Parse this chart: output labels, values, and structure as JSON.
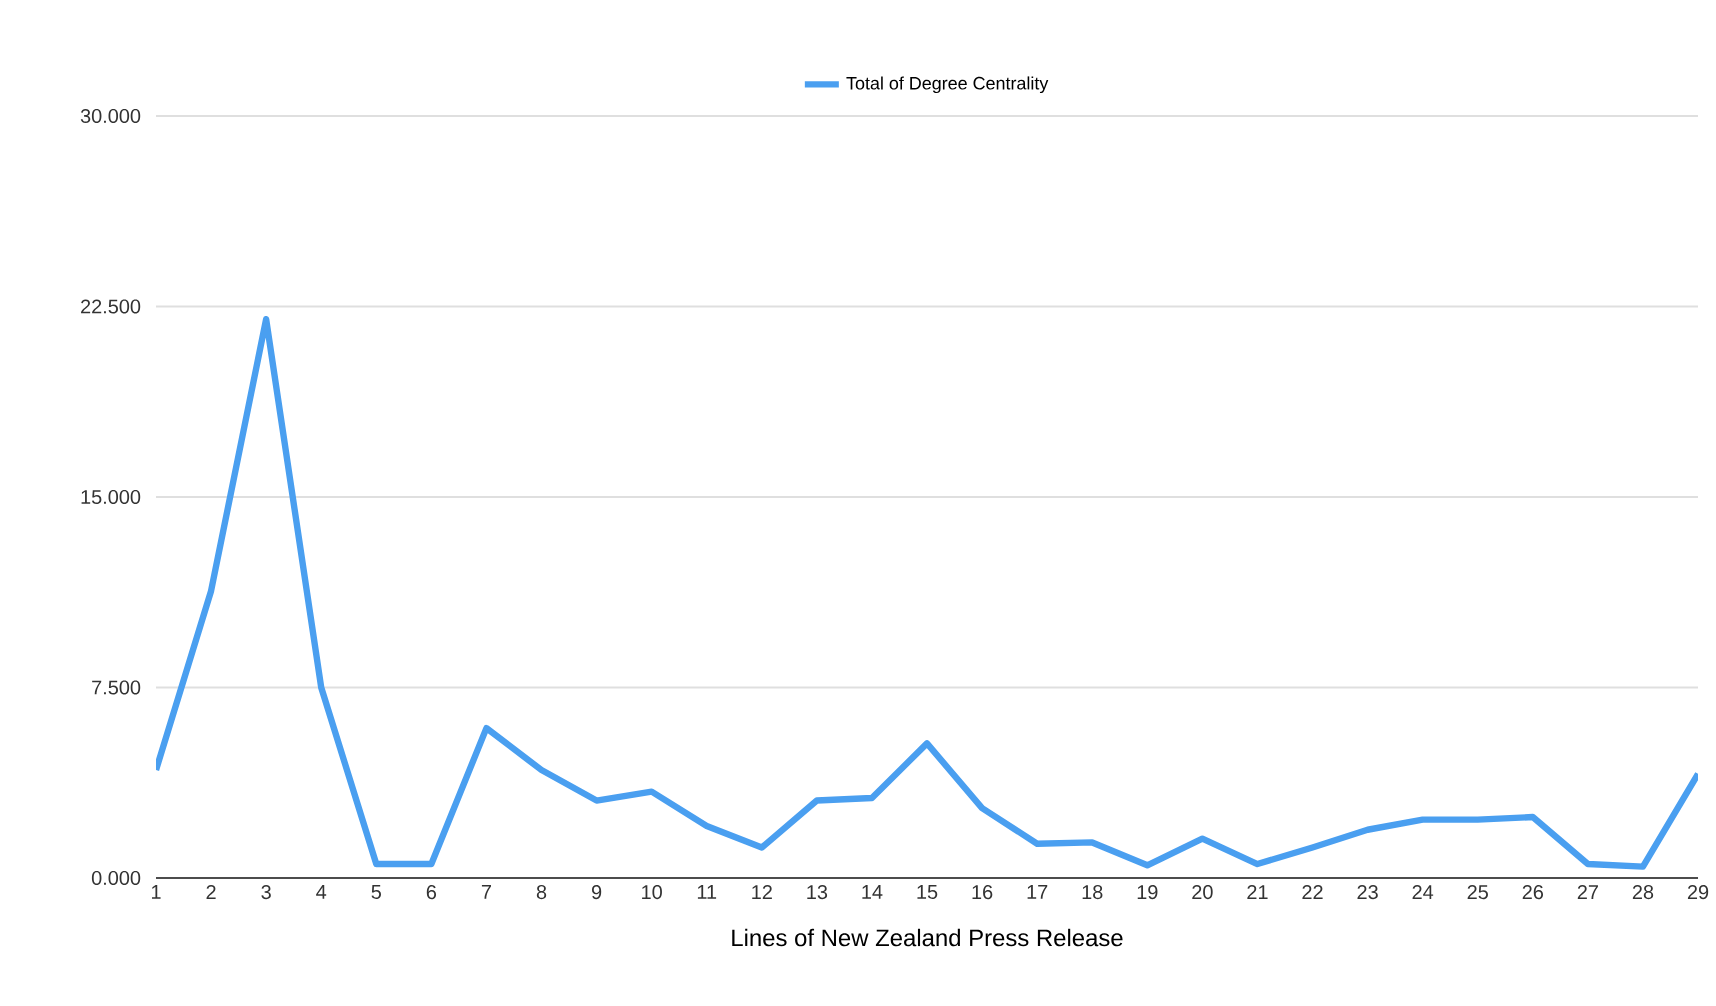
{
  "chart_data": {
    "type": "line",
    "xlabel": "Lines of New Zealand Press Release",
    "categories": [
      "1",
      "2",
      "3",
      "4",
      "5",
      "6",
      "7",
      "8",
      "9",
      "10",
      "11",
      "12",
      "13",
      "14",
      "15",
      "16",
      "17",
      "18",
      "19",
      "20",
      "21",
      "22",
      "23",
      "24",
      "25",
      "26",
      "27",
      "28",
      "29"
    ],
    "series": [
      {
        "name": "Total of Degree Centrality",
        "color": "#4a9ff0",
        "values": [
          4.25,
          11.3,
          22.0,
          7.5,
          0.55,
          0.55,
          5.9,
          4.25,
          3.05,
          3.4,
          2.05,
          1.2,
          3.05,
          3.15,
          5.3,
          2.75,
          1.35,
          1.4,
          0.5,
          1.55,
          0.55,
          1.2,
          1.9,
          2.3,
          2.3,
          2.4,
          0.55,
          0.45,
          4.1
        ]
      }
    ],
    "ylim": [
      0,
      30
    ],
    "yticks": [
      {
        "value": 0,
        "label": "0.000"
      },
      {
        "value": 7.5,
        "label": "7.500"
      },
      {
        "value": 15,
        "label": "15.000"
      },
      {
        "value": 22.5,
        "label": "22.500"
      },
      {
        "value": 30,
        "label": "30.000"
      }
    ],
    "grid": "y",
    "legend": "top",
    "marker": "none",
    "line_style": "solid"
  }
}
